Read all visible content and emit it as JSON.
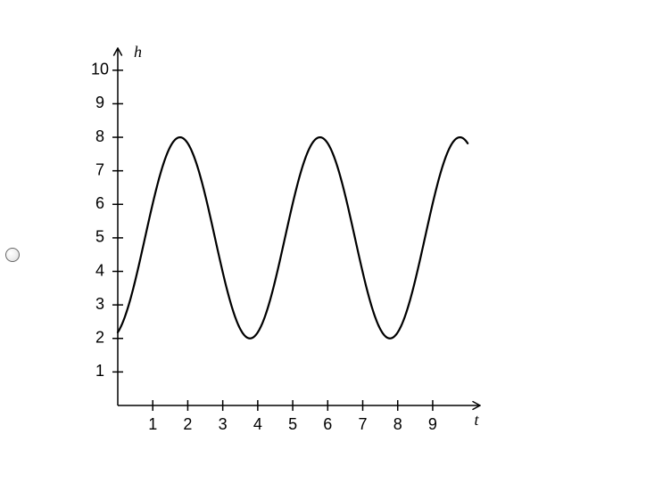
{
  "radio": {
    "checked": false
  },
  "chart": {
    "type": "line",
    "background_color": "#ffffff",
    "axis_color": "#000000",
    "curve_color": "#000000",
    "curve_width": 2.2,
    "axis_width": 1.5,
    "tick_length": 6,
    "tick_label_fontsize": 18,
    "axis_label_fontsize": 18,
    "x_axis": {
      "label": "t",
      "min": 0,
      "max": 10.2,
      "ticks": [
        1,
        2,
        3,
        4,
        5,
        6,
        7,
        8,
        9
      ],
      "tick_labels": [
        "1",
        "2",
        "3",
        "4",
        "5",
        "6",
        "7",
        "8",
        "9"
      ]
    },
    "y_axis": {
      "label": "h",
      "min": 0,
      "max": 10.5,
      "ticks": [
        1,
        2,
        3,
        4,
        5,
        6,
        7,
        8,
        9,
        10
      ],
      "tick_labels": [
        "1",
        "2",
        "3",
        "4",
        "5",
        "6",
        "7",
        "8",
        "9",
        "10"
      ]
    },
    "series": {
      "amplitude": 3,
      "midline": 5,
      "period": 4,
      "phase_deg_at_t0": 200,
      "t_start": 0,
      "t_end": 10,
      "samples": 400
    }
  }
}
